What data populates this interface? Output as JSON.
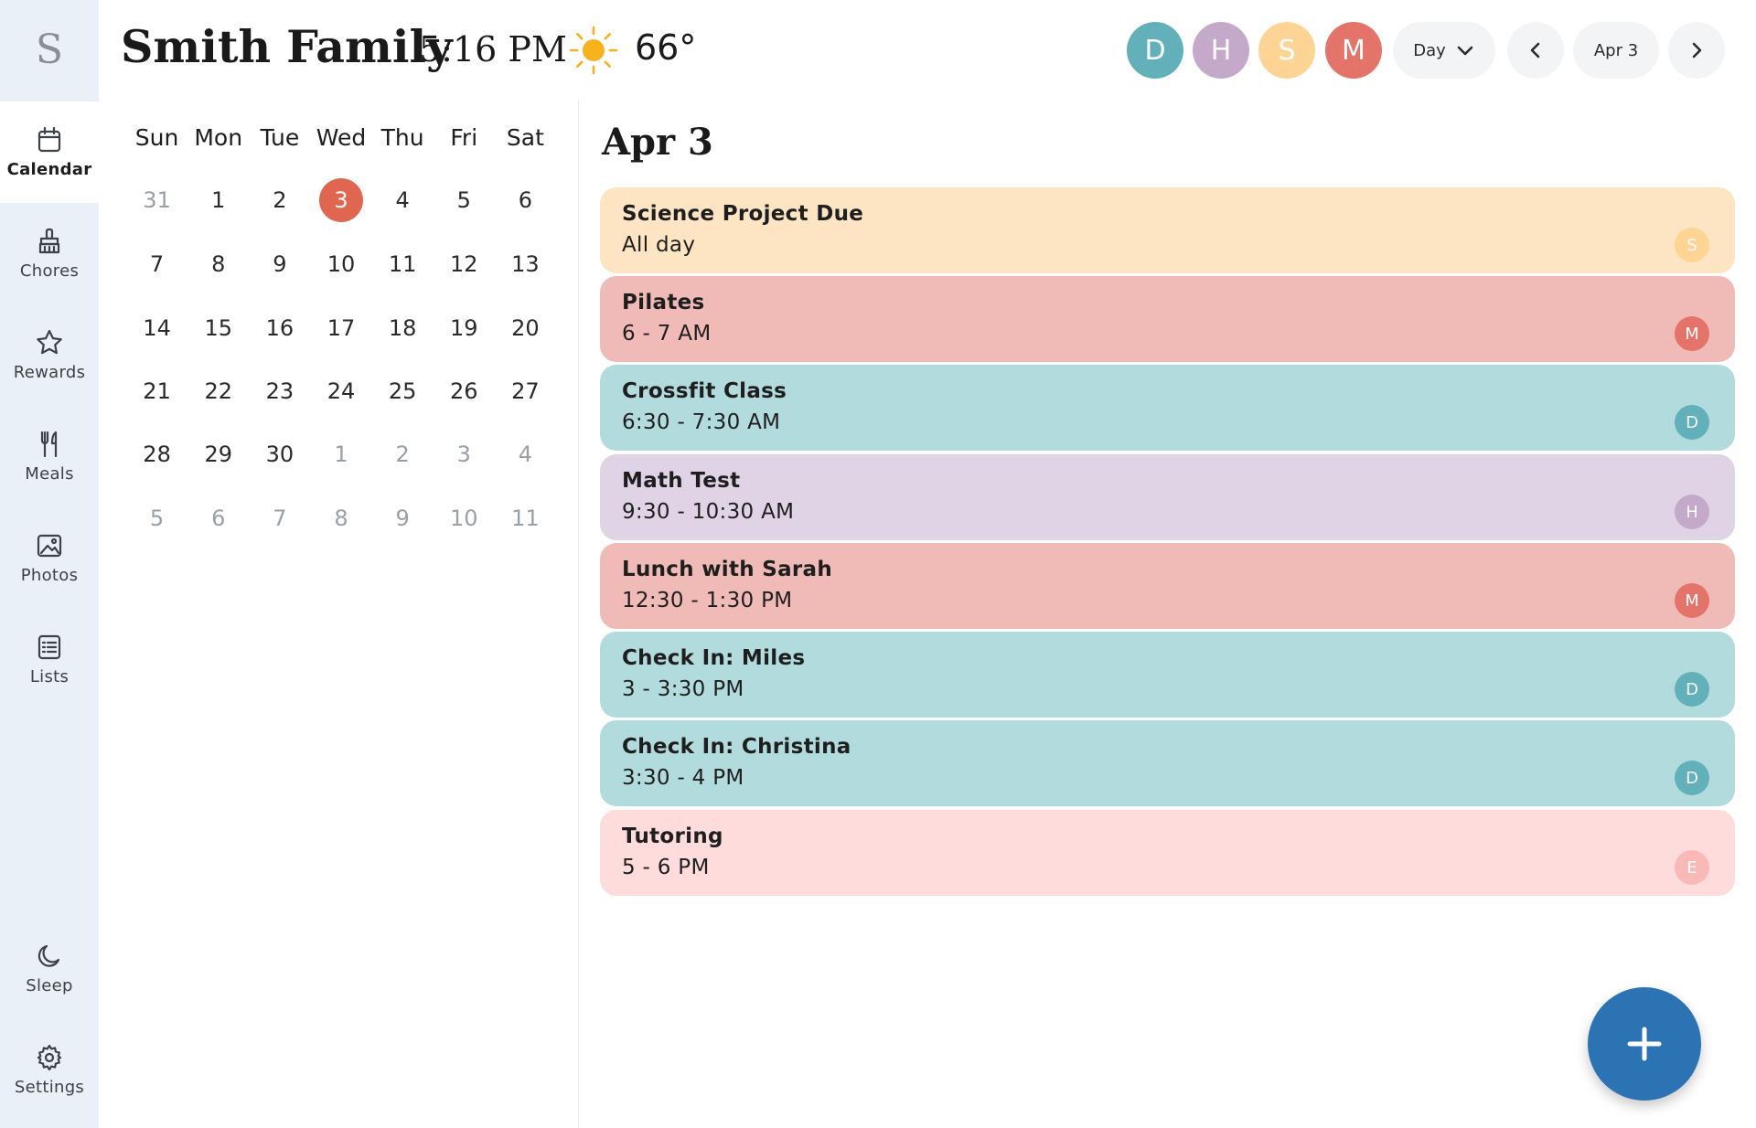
{
  "app": {
    "logo_letter": "S"
  },
  "sidebar": {
    "items": [
      {
        "label": "Calendar",
        "icon": "calendar-icon",
        "active": true
      },
      {
        "label": "Chores",
        "icon": "broom-icon"
      },
      {
        "label": "Rewards",
        "icon": "star-icon"
      },
      {
        "label": "Meals",
        "icon": "utensils-icon"
      },
      {
        "label": "Photos",
        "icon": "image-icon"
      },
      {
        "label": "Lists",
        "icon": "list-icon"
      }
    ],
    "bottom_items": [
      {
        "label": "Sleep",
        "icon": "moon-icon"
      },
      {
        "label": "Settings",
        "icon": "gear-icon"
      }
    ]
  },
  "header": {
    "family_name": "Smith Family",
    "time": "5:16 PM",
    "weather_icon": "sun-icon",
    "temperature": "66°",
    "members": [
      {
        "initial": "D",
        "color": "#62b0b9"
      },
      {
        "initial": "H",
        "color": "#c4a9cb"
      },
      {
        "initial": "S",
        "color": "#fdd494"
      },
      {
        "initial": "M",
        "color": "#e4736a"
      }
    ],
    "view_select": "Day",
    "date_label": "Apr 3"
  },
  "mini_calendar": {
    "weekdays": [
      "Sun",
      "Mon",
      "Tue",
      "Wed",
      "Thu",
      "Fri",
      "Sat"
    ],
    "weeks": [
      [
        "31",
        "1",
        "2",
        "3",
        "4",
        "5",
        "6"
      ],
      [
        "7",
        "8",
        "9",
        "10",
        "11",
        "12",
        "13"
      ],
      [
        "14",
        "15",
        "16",
        "17",
        "18",
        "19",
        "20"
      ],
      [
        "21",
        "22",
        "23",
        "24",
        "25",
        "26",
        "27"
      ],
      [
        "28",
        "29",
        "30",
        "1",
        "2",
        "3",
        "4"
      ],
      [
        "5",
        "6",
        "7",
        "8",
        "9",
        "10",
        "11"
      ]
    ],
    "today": "3",
    "today_color": "#e06650"
  },
  "agenda": {
    "date_title": "Apr 3",
    "events": [
      {
        "title": "Science Project Due",
        "time": "All day",
        "member": "S",
        "bg": "#fde5c4",
        "avatar_color": "#fdd494"
      },
      {
        "title": "Pilates",
        "time": "6 - 7 AM",
        "member": "M",
        "bg": "#f0bab6",
        "avatar_color": "#e4736a"
      },
      {
        "title": "Crossfit Class",
        "time": "6:30 - 7:30 AM",
        "member": "D",
        "bg": "#b1dbdc",
        "avatar_color": "#62b0b9"
      },
      {
        "title": "Math Test",
        "time": "9:30 - 10:30 AM",
        "member": "H",
        "bg": "#e0d3e5",
        "avatar_color": "#c4a9cb"
      },
      {
        "title": "Lunch with Sarah",
        "time": "12:30 - 1:30 PM",
        "member": "M",
        "bg": "#f0bab6",
        "avatar_color": "#e4736a"
      },
      {
        "title": "Check In: Miles",
        "time": "3 - 3:30 PM",
        "member": "D",
        "bg": "#b1dbdc",
        "avatar_color": "#62b0b9"
      },
      {
        "title": "Check In: Christina",
        "time": "3:30 - 4 PM",
        "member": "D",
        "bg": "#b1dbdc",
        "avatar_color": "#62b0b9"
      },
      {
        "title": "Tutoring",
        "time": "5 - 6 PM",
        "member": "E",
        "bg": "#fddcdb",
        "avatar_color": "#f8b9b7"
      }
    ]
  },
  "fab": {
    "icon": "plus-icon",
    "color": "#2b73b3"
  }
}
